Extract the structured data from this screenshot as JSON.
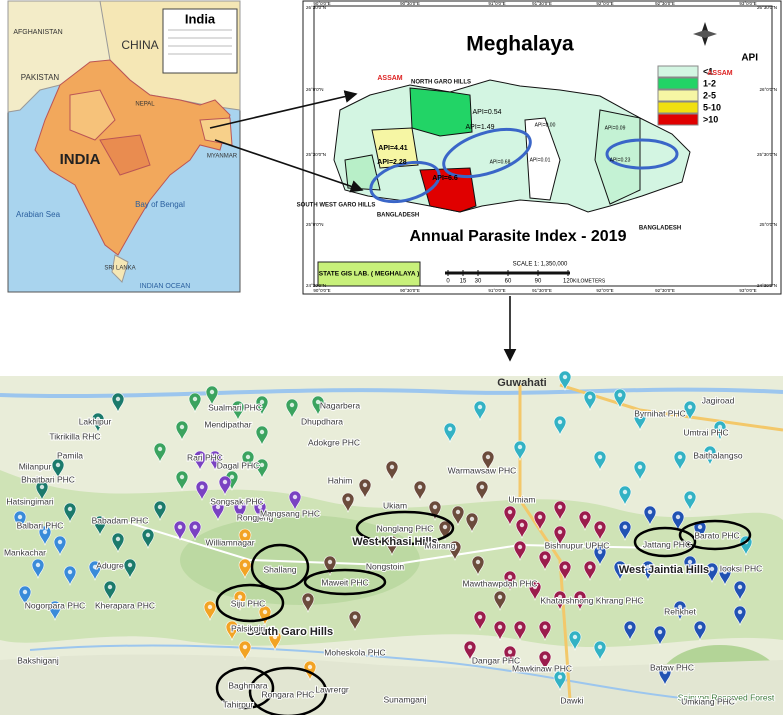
{
  "india_map": {
    "title": "India",
    "labels": [
      "AFGHANISTAN",
      "PAKISTAN",
      "CHINA",
      "NEPAL",
      "INDIA",
      "MYANMAR",
      "Bay of Bengal",
      "Arabian Sea",
      "SRI LANKA",
      "INDIAN OCEAN"
    ]
  },
  "meghalaya_map": {
    "title": "Meghalaya",
    "subtitle": "Annual Parasite Index - 2019",
    "legend": {
      "title": "API",
      "items": [
        {
          "label": "<1",
          "color": "#d3f5e2"
        },
        {
          "label": "1-2",
          "color": "#22d466"
        },
        {
          "label": "2-5",
          "color": "#f6f6a4"
        },
        {
          "label": "5-10",
          "color": "#f0e010"
        },
        {
          "label": ">10",
          "color": "#e00000"
        }
      ]
    },
    "labels": [
      "ASSAM",
      "ASSAM",
      "NORTH GARO HILLS",
      "SOUTH WEST GARO HILLS",
      "BANGLADESH",
      "BANGLADESH"
    ],
    "api_labels": [
      "API=0.54",
      "API=1.49",
      "API=4.41",
      "API=2.28",
      "API=6.6",
      "API=0.68",
      "API=0.00",
      "API=0.01",
      "API=0.09",
      "API=0.23"
    ],
    "credit": "STATE GIS LAB. ( MEGHALAYA )",
    "scale": {
      "label": "SCALE 1: 1,350,000",
      "ticks": [
        0,
        15,
        30,
        60,
        90,
        120
      ],
      "unit": "KILOMETERS"
    },
    "longitudes": [
      "90°0'0\"E",
      "90°30'0\"E",
      "91°0'0\"E",
      "91°30'0\"E",
      "92°0'0\"E",
      "92°30'0\"E",
      "93°0'0\"E"
    ],
    "latitudes": [
      "26°30'0\"N",
      "26°0'0\"N",
      "25°30'0\"N",
      "25°0'0\"N",
      "24°30'0\"N"
    ]
  },
  "district_map": {
    "city": "Guwahati",
    "regions": [
      "West Khasi Hills",
      "South Garo Hills",
      "West Jaintia Hills"
    ],
    "places": [
      "Lakhipur",
      "Tikrikilla RHC",
      "Sualmari PHC",
      "Mendipathar",
      "Dhupdhara",
      "Adokgre PHC",
      "Pamila",
      "Nagarbera",
      "Milanpur",
      "Bhaitbari PHC",
      "Hahim",
      "Rari PHC",
      "Dagal PHC",
      "Hatsingimari",
      "Ukiam",
      "Songsak PHC",
      "Rongjeng",
      "Mangsang PHC",
      "Nonglang PHC",
      "Babadam PHC",
      "Balbari PHC",
      "Mankachar",
      "Williamnagar",
      "Adugre",
      "Shallang",
      "Nongstoin",
      "Maweit PHC",
      "Siju PHC",
      "Nogorpara PHC",
      "Kherapara PHC",
      "Pālsikgiri",
      "Moheskola PHC",
      "Baghmara",
      "Rongara PHC",
      "Lawrergr",
      "Bakshiganj",
      "Tahirpur",
      "Sunamganj",
      "Dangar PHC",
      "Umiam",
      "Warmawsaw PHC",
      "Byrnihat PHC",
      "Umtrai PHC",
      "Jagiroad",
      "Baithalangso",
      "Mairang",
      "Mawthawpdah PHC",
      "Khatarshnong Khrang PHC",
      "Bishnupur UPHC",
      "Jattang PHC",
      "Barato PHC",
      "Iooksi PHC",
      "Mawkinaw PHC",
      "Dawki",
      "Bataw PHC",
      "Saipung Reserved Forest",
      "Umkiang PHC",
      "Rehkhet"
    ]
  }
}
